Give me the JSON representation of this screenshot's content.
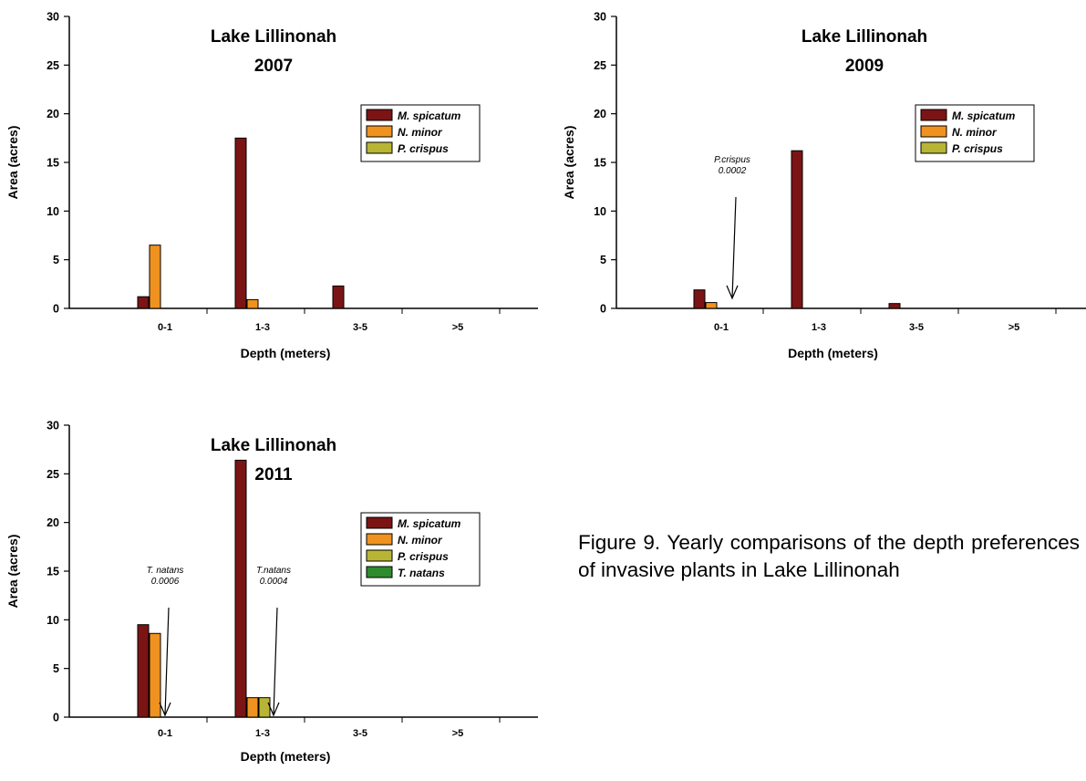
{
  "charts": [
    {
      "title_line1": "Lake Lillinonah",
      "title_line2": "2007",
      "xlabel": "Depth (meters)",
      "ylabel": "Area (acres)",
      "annotations": []
    },
    {
      "title_line1": "Lake Lillinonah",
      "title_line2": "2009",
      "xlabel": "Depth (meters)",
      "ylabel": "Area (acres)",
      "annotations": [
        {
          "line1": "P.crispus",
          "line2": "0.0002",
          "category": "0-1"
        }
      ]
    },
    {
      "title_line1": "Lake Lillinonah",
      "title_line2": "2011",
      "xlabel": "Depth (meters)",
      "ylabel": "Area (acres)",
      "annotations": [
        {
          "line1": "T. natans",
          "line2": "0.0006",
          "category": "0-1"
        },
        {
          "line1": "T.natans",
          "line2": "0.0004",
          "category": "1-3"
        }
      ]
    }
  ],
  "caption": "Figure 9. Yearly comparisons of the depth preferences of invasive plants in Lake Lillinonah",
  "colors": {
    "M. spicatum": "#7b1414",
    "N. minor": "#f0921f",
    "P. crispus": "#b8b535",
    "T. natans": "#2e8b2e"
  },
  "chart_data": [
    {
      "type": "bar",
      "title": "Lake Lillinonah 2007",
      "xlabel": "Depth (meters)",
      "ylabel": "Area (acres)",
      "ylim": [
        0,
        30
      ],
      "yticks": [
        0,
        5,
        10,
        15,
        20,
        25,
        30
      ],
      "categories": [
        "0-1",
        "1-3",
        "3-5",
        ">5"
      ],
      "series": [
        {
          "name": "M. spicatum",
          "values": [
            1.2,
            17.5,
            2.3,
            0
          ]
        },
        {
          "name": "N. minor",
          "values": [
            6.5,
            0.9,
            0,
            0
          ]
        },
        {
          "name": "P. crispus",
          "values": [
            0,
            0,
            0,
            0
          ]
        }
      ],
      "legend": "upper-right"
    },
    {
      "type": "bar",
      "title": "Lake Lillinonah 2009",
      "xlabel": "Depth (meters)",
      "ylabel": "Area (acres)",
      "ylim": [
        0,
        30
      ],
      "yticks": [
        0,
        5,
        10,
        15,
        20,
        25,
        30
      ],
      "categories": [
        "0-1",
        "1-3",
        "3-5",
        ">5"
      ],
      "series": [
        {
          "name": "M. spicatum",
          "values": [
            1.9,
            16.2,
            0.5,
            0
          ]
        },
        {
          "name": "N. minor",
          "values": [
            0.6,
            0,
            0,
            0
          ]
        },
        {
          "name": "P. crispus",
          "values": [
            0.0002,
            0,
            0,
            0
          ]
        }
      ],
      "legend": "upper-right"
    },
    {
      "type": "bar",
      "title": "Lake Lillinonah 2011",
      "xlabel": "Depth (meters)",
      "ylabel": "Area (acres)",
      "ylim": [
        0,
        30
      ],
      "yticks": [
        0,
        5,
        10,
        15,
        20,
        25,
        30
      ],
      "categories": [
        "0-1",
        "1-3",
        "3-5",
        ">5"
      ],
      "series": [
        {
          "name": "M. spicatum",
          "values": [
            9.5,
            26.4,
            0,
            0
          ]
        },
        {
          "name": "N. minor",
          "values": [
            8.6,
            2.0,
            0,
            0
          ]
        },
        {
          "name": "P. crispus",
          "values": [
            0,
            2.0,
            0,
            0
          ]
        },
        {
          "name": "T. natans",
          "values": [
            0.0006,
            0.0004,
            0,
            0
          ]
        }
      ],
      "legend": "upper-right"
    }
  ]
}
